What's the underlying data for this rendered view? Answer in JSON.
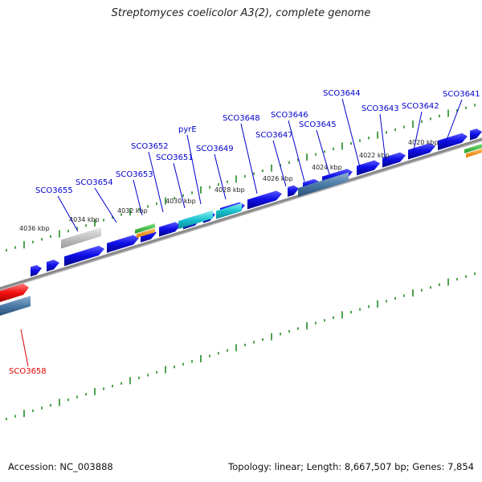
{
  "title": "Streptomyces coelicolor A3(2), complete genome",
  "footer": {
    "accession": "Accession: NC_003888",
    "summary": "Topology: linear; Length: 8,667,507 bp; Genes: 7,854"
  },
  "colors": {
    "cds": "#1010e8",
    "label_blue": "#0000cc",
    "label_red": "#dd0000",
    "axis": "#8a8a8a",
    "tick": "#228b22"
  },
  "kbp_ticks": [
    "4036 kbp",
    "4034 kbp",
    "4032 kbp",
    "4030 kbp",
    "4028 kbp",
    "4026 kbp",
    "4024 kbp",
    "4022 kbp",
    "4020 kbp"
  ],
  "gene_labels": [
    "SCO3655",
    "SCO3654",
    "SCO3653",
    "SCO3652",
    "SCO3651",
    "pyrE",
    "SCO3649",
    "SCO3648",
    "SCO3647",
    "SCO3646",
    "SCO3645",
    "SCO3644",
    "SCO3643",
    "SCO3642",
    "SCO3641",
    "SCO3658"
  ]
}
